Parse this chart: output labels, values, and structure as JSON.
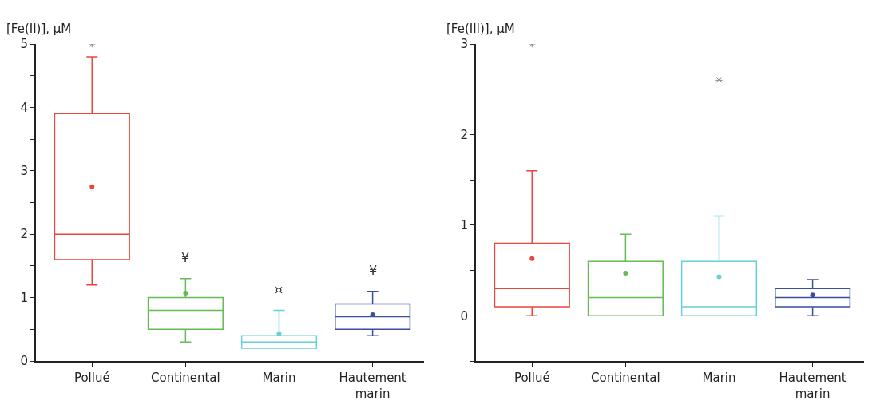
{
  "chart_data": [
    {
      "type": "box",
      "ylabel": "[Fe(II)], µM",
      "categories": [
        "Pollué",
        "Continental",
        "Marin",
        "Hautement marin"
      ],
      "colors": [
        "#e8453c",
        "#66bb55",
        "#66d0d8",
        "#3a4fa0"
      ],
      "boxes": [
        {
          "low": 1.2,
          "q1": 1.6,
          "median": 2.0,
          "q3": 3.9,
          "high": 4.8,
          "mean": 2.75,
          "outliers": [
            5.0
          ]
        },
        {
          "low": 0.3,
          "q1": 0.5,
          "median": 0.8,
          "q3": 1.0,
          "high": 1.3,
          "mean": 1.07
        },
        {
          "low": 0.2,
          "q1": 0.2,
          "median": 0.3,
          "q3": 0.4,
          "high": 0.8,
          "mean": 0.43
        },
        {
          "low": 0.4,
          "q1": 0.5,
          "median": 0.7,
          "q3": 0.9,
          "high": 1.1,
          "mean": 0.73
        }
      ],
      "ylim": [
        0,
        5
      ],
      "yticks": [
        0,
        {
          "value": 0.5,
          "label": null
        },
        1,
        {
          "value": 1.5,
          "label": null
        },
        2,
        {
          "value": 2.5,
          "label": null
        },
        3,
        {
          "value": 3.5,
          "label": null
        },
        4,
        {
          "value": 4.5,
          "label": null
        },
        5
      ],
      "annotations": [
        "¥",
        "¤",
        "¥"
      ]
    },
    {
      "type": "box",
      "ylabel": "[Fe(III)], µM",
      "categories": [
        "Pollué",
        "Continental",
        "Marin",
        "Hautement marin"
      ],
      "colors": [
        "#e8453c",
        "#66bb55",
        "#66d0d8",
        "#3a4fa0"
      ],
      "boxes": [
        {
          "low": 0,
          "q1": 0.1,
          "median": 0.3,
          "q3": 0.8,
          "high": 1.6,
          "mean": 0.63,
          "outliers": [
            3.0
          ]
        },
        {
          "low": 0,
          "q1": 0,
          "median": 0.2,
          "q3": 0.6,
          "high": 0.9,
          "mean": 0.47
        },
        {
          "low": 0,
          "q1": 0,
          "median": 0.1,
          "q3": 0.6,
          "high": 1.1,
          "mean": 0.43,
          "outliers": [
            2.6
          ]
        },
        {
          "low": 0,
          "q1": 0.1,
          "median": 0.2,
          "q3": 0.3,
          "high": 0.4,
          "mean": 0.23
        }
      ],
      "ylim": [
        -0.5,
        3
      ],
      "yticks": [
        {
          "value": -0.5,
          "label": null
        },
        0,
        {
          "value": 0.5,
          "label": null
        },
        1,
        {
          "value": 1.5,
          "label": null
        },
        2,
        {
          "value": 2.5,
          "label": null
        },
        3
      ]
    }
  ]
}
